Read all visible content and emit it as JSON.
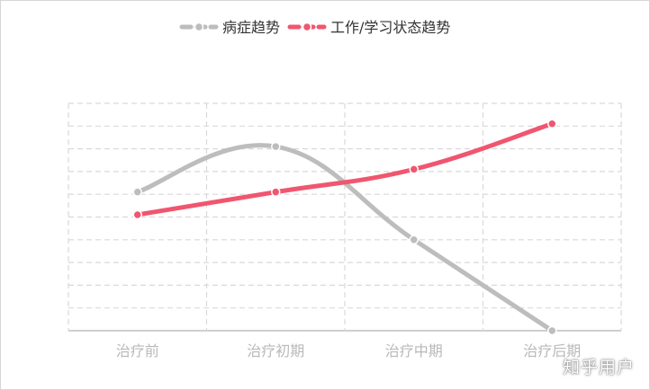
{
  "chart_data": {
    "type": "line",
    "categories": [
      "治疗前",
      "治疗初期",
      "治疗中期",
      "治疗后期"
    ],
    "ylim": [
      0,
      10
    ],
    "grid": true,
    "legend_position": "top-center",
    "series": [
      {
        "name": "病症趋势",
        "values": [
          6.1,
          8.1,
          4.0,
          0.0
        ],
        "color": "#bdbdbd"
      },
      {
        "name": "工作/学习状态趋势",
        "values": [
          5.1,
          6.1,
          7.1,
          9.1
        ],
        "color": "#f0566f"
      }
    ]
  },
  "watermark": "知乎用户"
}
